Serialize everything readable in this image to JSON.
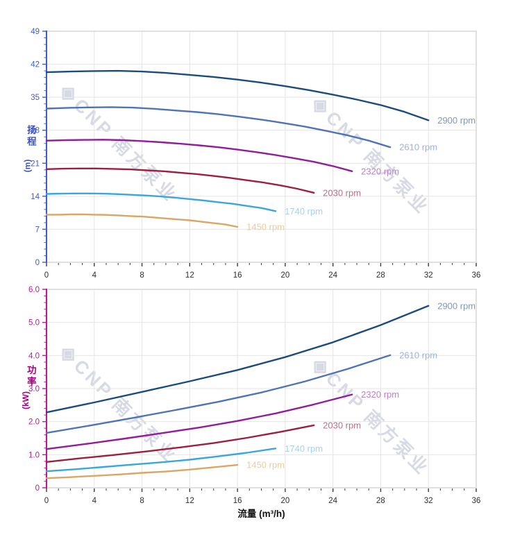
{
  "watermark": {
    "logo": "◈",
    "text": "CNP 南方泵业"
  },
  "chart_data": [
    {
      "name": "head",
      "type": "line",
      "title": "",
      "xlabel": "",
      "ylabel": "扬程",
      "ylabel_unit": "(m)",
      "xlim": [
        0,
        36
      ],
      "ylim": [
        0,
        49
      ],
      "x_major": 4,
      "x_minor": 1,
      "y_major": 7,
      "y_minor": 1.4,
      "grid": true,
      "legend_position": "line-end-labels",
      "x_tick_labels": [
        "0",
        "4",
        "8",
        "12",
        "16",
        "20",
        "24",
        "28",
        "32",
        "36"
      ],
      "y_tick_labels": [
        "0",
        "7",
        "14",
        "21",
        "28",
        "35",
        "42",
        "49"
      ],
      "axis_color": "#3c5ccf",
      "tick_label_color": "#3c5ccf",
      "series": [
        {
          "name": "2900 rpm",
          "color": "#1a4c7e",
          "label_color": "#8097ba",
          "points": [
            [
              0,
              40.3
            ],
            [
              2,
              40.45
            ],
            [
              4,
              40.55
            ],
            [
              6,
              40.6
            ],
            [
              8,
              40.45
            ],
            [
              10,
              40.15
            ],
            [
              12,
              39.75
            ],
            [
              14,
              39.3
            ],
            [
              16,
              38.75
            ],
            [
              18,
              38.1
            ],
            [
              20,
              37.35
            ],
            [
              22,
              36.5
            ],
            [
              24,
              35.55
            ],
            [
              26,
              34.5
            ],
            [
              28,
              33.35
            ],
            [
              30,
              31.9
            ],
            [
              32,
              30.1
            ]
          ]
        },
        {
          "name": "2610 rpm",
          "color": "#4e73b8",
          "label_color": "#9fb1da",
          "points": [
            [
              0,
              32.6
            ],
            [
              1.8,
              32.75
            ],
            [
              3.6,
              32.85
            ],
            [
              5.4,
              32.9
            ],
            [
              7.2,
              32.8
            ],
            [
              9,
              32.55
            ],
            [
              10.8,
              32.2
            ],
            [
              12.6,
              31.85
            ],
            [
              14.4,
              31.4
            ],
            [
              16.2,
              30.85
            ],
            [
              18,
              30.25
            ],
            [
              19.8,
              29.55
            ],
            [
              21.6,
              28.8
            ],
            [
              23.4,
              27.9
            ],
            [
              25.2,
              26.95
            ],
            [
              27,
              25.8
            ],
            [
              28.8,
              24.4
            ]
          ]
        },
        {
          "name": "2320 rpm",
          "color": "#941b9e",
          "label_color": "#bc7fc6",
          "points": [
            [
              0,
              25.8
            ],
            [
              1.6,
              25.9
            ],
            [
              3.2,
              25.95
            ],
            [
              4.8,
              26.0
            ],
            [
              6.4,
              25.9
            ],
            [
              8,
              25.7
            ],
            [
              9.6,
              25.45
            ],
            [
              11.2,
              25.15
            ],
            [
              12.8,
              24.8
            ],
            [
              14.4,
              24.4
            ],
            [
              16,
              23.9
            ],
            [
              17.6,
              23.35
            ],
            [
              19.2,
              22.75
            ],
            [
              20.8,
              22.05
            ],
            [
              22.4,
              21.3
            ],
            [
              24,
              20.4
            ],
            [
              25.6,
              19.3
            ]
          ]
        },
        {
          "name": "2030 rpm",
          "color": "#9e1e3d",
          "label_color": "#b5718a",
          "points": [
            [
              0,
              19.75
            ],
            [
              1.4,
              19.85
            ],
            [
              2.8,
              19.9
            ],
            [
              4.2,
              19.9
            ],
            [
              5.6,
              19.8
            ],
            [
              7,
              19.7
            ],
            [
              8.4,
              19.5
            ],
            [
              9.8,
              19.3
            ],
            [
              11.2,
              19.0
            ],
            [
              12.6,
              18.7
            ],
            [
              14,
              18.3
            ],
            [
              15.4,
              17.9
            ],
            [
              16.8,
              17.4
            ],
            [
              18.2,
              16.9
            ],
            [
              19.6,
              16.3
            ],
            [
              21,
              15.6
            ],
            [
              22.4,
              14.75
            ]
          ]
        },
        {
          "name": "1740 rpm",
          "color": "#3aa5de",
          "label_color": "#a5d2f1",
          "points": [
            [
              0,
              14.5
            ],
            [
              1.2,
              14.55
            ],
            [
              2.4,
              14.6
            ],
            [
              3.6,
              14.6
            ],
            [
              4.8,
              14.55
            ],
            [
              6,
              14.45
            ],
            [
              7.2,
              14.3
            ],
            [
              8.4,
              14.15
            ],
            [
              9.6,
              13.95
            ],
            [
              10.8,
              13.7
            ],
            [
              12,
              13.4
            ],
            [
              13.2,
              13.1
            ],
            [
              14.4,
              12.75
            ],
            [
              15.6,
              12.4
            ],
            [
              16.8,
              11.95
            ],
            [
              18,
              11.5
            ],
            [
              19.2,
              10.85
            ]
          ]
        },
        {
          "name": "1450 rpm",
          "color": "#dca563",
          "label_color": "#eccb9d",
          "points": [
            [
              0,
              10.1
            ],
            [
              1,
              10.1
            ],
            [
              2,
              10.15
            ],
            [
              3,
              10.15
            ],
            [
              4,
              10.1
            ],
            [
              5,
              10.05
            ],
            [
              6,
              9.95
            ],
            [
              7,
              9.8
            ],
            [
              8,
              9.7
            ],
            [
              9,
              9.5
            ],
            [
              10,
              9.3
            ],
            [
              11,
              9.1
            ],
            [
              12,
              8.9
            ],
            [
              13,
              8.6
            ],
            [
              14,
              8.3
            ],
            [
              15,
              8.0
            ],
            [
              16,
              7.5
            ]
          ]
        }
      ]
    },
    {
      "name": "power",
      "type": "line",
      "title": "",
      "xlabel": "流量 (m³/h)",
      "ylabel": "功率",
      "ylabel_unit": "(kW)",
      "xlim": [
        0,
        36
      ],
      "ylim": [
        0,
        6
      ],
      "x_major": 4,
      "x_minor": 1,
      "y_major": 1,
      "y_minor": 0.2,
      "grid": true,
      "legend_position": "line-end-labels",
      "x_tick_labels": [
        "0",
        "4",
        "8",
        "12",
        "16",
        "20",
        "24",
        "28",
        "32",
        "36"
      ],
      "y_tick_labels": [
        "0",
        "1.0",
        "2.0",
        "3.0",
        "4.0",
        "5.0",
        "6.0"
      ],
      "axis_color": "#bf1694",
      "tick_label_color": "#bf1694",
      "series": [
        {
          "name": "2900 rpm",
          "color": "#1a4c7e",
          "label_color": "#8097ba",
          "points": [
            [
              0,
              2.28
            ],
            [
              4,
              2.58
            ],
            [
              8,
              2.9
            ],
            [
              12,
              3.22
            ],
            [
              16,
              3.56
            ],
            [
              20,
              3.95
            ],
            [
              24,
              4.4
            ],
            [
              28,
              4.92
            ],
            [
              32,
              5.5
            ]
          ]
        },
        {
          "name": "2610 rpm",
          "color": "#4e73b8",
          "label_color": "#9fb1da",
          "points": [
            [
              0,
              1.66
            ],
            [
              3.6,
              1.88
            ],
            [
              7.2,
              2.11
            ],
            [
              10.8,
              2.35
            ],
            [
              14.4,
              2.6
            ],
            [
              18,
              2.88
            ],
            [
              21.6,
              3.21
            ],
            [
              25.2,
              3.59
            ],
            [
              28.8,
              4.01
            ]
          ]
        },
        {
          "name": "2320 rpm",
          "color": "#941b9e",
          "label_color": "#bc7fc6",
          "points": [
            [
              0,
              1.17
            ],
            [
              3.2,
              1.32
            ],
            [
              6.4,
              1.48
            ],
            [
              9.6,
              1.65
            ],
            [
              12.8,
              1.82
            ],
            [
              16,
              2.02
            ],
            [
              19.2,
              2.25
            ],
            [
              22.4,
              2.52
            ],
            [
              25.6,
              2.82
            ]
          ]
        },
        {
          "name": "2030 rpm",
          "color": "#9e1e3d",
          "label_color": "#b5718a",
          "points": [
            [
              0,
              0.78
            ],
            [
              2.8,
              0.89
            ],
            [
              5.6,
              0.99
            ],
            [
              8.4,
              1.1
            ],
            [
              11.2,
              1.22
            ],
            [
              14,
              1.35
            ],
            [
              16.8,
              1.51
            ],
            [
              19.6,
              1.69
            ],
            [
              22.4,
              1.89
            ]
          ]
        },
        {
          "name": "1740 rpm",
          "color": "#3aa5de",
          "label_color": "#a5d2f1",
          "points": [
            [
              0,
              0.5
            ],
            [
              2.4,
              0.56
            ],
            [
              4.8,
              0.63
            ],
            [
              7.2,
              0.7
            ],
            [
              9.6,
              0.77
            ],
            [
              12,
              0.85
            ],
            [
              14.4,
              0.95
            ],
            [
              16.8,
              1.06
            ],
            [
              19.2,
              1.19
            ]
          ]
        },
        {
          "name": "1450 rpm",
          "color": "#dca563",
          "label_color": "#eccb9d",
          "points": [
            [
              0,
              0.29
            ],
            [
              2,
              0.32
            ],
            [
              4,
              0.36
            ],
            [
              6,
              0.4
            ],
            [
              8,
              0.45
            ],
            [
              10,
              0.49
            ],
            [
              12,
              0.55
            ],
            [
              14,
              0.62
            ],
            [
              16,
              0.69
            ]
          ]
        }
      ]
    }
  ]
}
